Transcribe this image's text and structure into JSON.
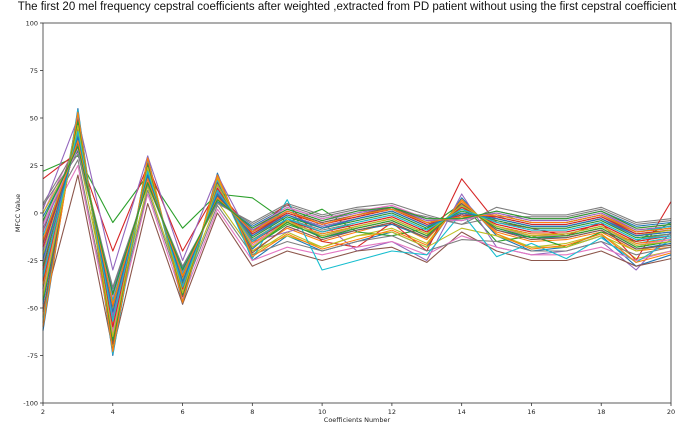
{
  "chart_data": {
    "type": "line",
    "title": "The first 20 mel frequency cepstral coefficients after weighted ,extracted from PD patient without using the first cepstral coefficient",
    "xlabel": "Coefficients Number",
    "ylabel": "MFCC Value",
    "xlim": [
      2,
      20
    ],
    "ylim": [
      -100,
      100
    ],
    "x_ticks": [
      2,
      4,
      6,
      8,
      10,
      12,
      14,
      16,
      18,
      20
    ],
    "y_ticks": [
      -100,
      -75,
      -50,
      -25,
      0,
      25,
      50,
      75,
      100
    ],
    "grid": false,
    "legend": "none",
    "x": [
      2,
      3,
      4,
      5,
      6,
      7,
      8,
      9,
      10,
      11,
      12,
      13,
      14,
      15,
      16,
      17,
      18,
      19,
      20
    ],
    "series_count_note_hidden": false,
    "series": [
      {
        "values": [
          -62,
          55,
          -75,
          30,
          -48,
          21,
          -25,
          -12,
          -20,
          -15,
          -10,
          -18,
          8,
          -12,
          -20,
          -18,
          -12,
          -28,
          -22
        ]
      },
      {
        "values": [
          -55,
          50,
          -72,
          28,
          -46,
          18,
          -20,
          -8,
          -15,
          -10,
          -5,
          -14,
          6,
          -10,
          -15,
          -14,
          -10,
          -20,
          -18
        ]
      },
      {
        "values": [
          -40,
          48,
          -68,
          26,
          -44,
          16,
          -18,
          -6,
          -12,
          -8,
          -4,
          -12,
          4,
          -8,
          -12,
          -12,
          -8,
          -18,
          -15
        ]
      },
      {
        "values": [
          -30,
          45,
          -60,
          24,
          -40,
          14,
          -15,
          -4,
          -10,
          -6,
          -2,
          -10,
          2,
          -6,
          -10,
          -10,
          -6,
          -15,
          -12
        ]
      },
      {
        "values": [
          -20,
          42,
          -55,
          22,
          -38,
          12,
          -12,
          -2,
          -8,
          -4,
          0,
          -8,
          0,
          -4,
          -8,
          -8,
          -4,
          -12,
          -10
        ]
      },
      {
        "values": [
          -10,
          40,
          -50,
          20,
          -35,
          10,
          -10,
          0,
          -6,
          -2,
          2,
          -6,
          -2,
          -2,
          -6,
          -6,
          -2,
          -10,
          -8
        ]
      },
      {
        "values": [
          0,
          38,
          -45,
          18,
          -32,
          8,
          -8,
          2,
          -4,
          0,
          4,
          -4,
          -4,
          0,
          -4,
          -4,
          0,
          -8,
          -6
        ]
      },
      {
        "values": [
          5,
          35,
          -40,
          15,
          -30,
          6,
          -6,
          4,
          -2,
          2,
          2,
          -2,
          -6,
          -2,
          -2,
          -2,
          2,
          -6,
          -4
        ]
      },
      {
        "values": [
          -45,
          52,
          -70,
          29,
          -45,
          19,
          -22,
          -10,
          -18,
          -12,
          -8,
          -16,
          7,
          -11,
          -18,
          -16,
          -11,
          -24,
          -20
        ]
      },
      {
        "values": [
          -35,
          44,
          -58,
          23,
          -39,
          13,
          -14,
          -5,
          -11,
          -7,
          -3,
          -11,
          3,
          -7,
          -11,
          -11,
          -7,
          -16,
          -13
        ]
      },
      {
        "values": [
          -25,
          41,
          -52,
          21,
          -36,
          11,
          -11,
          -1,
          -7,
          -3,
          1,
          -7,
          -1,
          -3,
          -7,
          -7,
          -3,
          -11,
          -9
        ]
      },
      {
        "values": [
          -15,
          39,
          -47,
          19,
          -33,
          9,
          -9,
          1,
          -5,
          -1,
          3,
          -5,
          -3,
          -1,
          -5,
          -5,
          -1,
          -9,
          -7
        ]
      },
      {
        "values": [
          22,
          30,
          -5,
          20,
          -8,
          10,
          8,
          -5,
          2,
          -10,
          -12,
          -8,
          5,
          -15,
          -12,
          -18,
          -10,
          -15,
          -5
        ]
      },
      {
        "values": [
          18,
          32,
          -20,
          25,
          -20,
          12,
          -10,
          5,
          -15,
          -18,
          -5,
          -20,
          18,
          -5,
          -8,
          -12,
          -5,
          -25,
          6
        ]
      },
      {
        "values": [
          2,
          50,
          -30,
          30,
          -25,
          20,
          -15,
          -10,
          -5,
          -20,
          -15,
          -25,
          10,
          -18,
          -22,
          -20,
          -15,
          -30,
          -10
        ]
      },
      {
        "values": [
          -50,
          20,
          -72,
          5,
          -48,
          0,
          -28,
          -20,
          -25,
          -20,
          -18,
          -26,
          -10,
          -20,
          -25,
          -25,
          -20,
          -28,
          -24
        ]
      },
      {
        "values": [
          -10,
          25,
          -65,
          10,
          -45,
          2,
          -25,
          -18,
          -22,
          -18,
          -15,
          -22,
          -12,
          -18,
          -22,
          -22,
          -18,
          -25,
          -20
        ]
      },
      {
        "values": [
          -5,
          28,
          -62,
          12,
          -42,
          4,
          -22,
          -15,
          -20,
          -15,
          -12,
          -20,
          -14,
          -15,
          -20,
          -20,
          -15,
          -22,
          -18
        ]
      },
      {
        "values": [
          0,
          33,
          -58,
          14,
          -40,
          6,
          -20,
          -12,
          -18,
          -12,
          -10,
          -18,
          -8,
          -12,
          -18,
          -18,
          -12,
          -20,
          -16
        ]
      },
      {
        "values": [
          -58,
          54,
          -74,
          27,
          -47,
          17,
          -24,
          7,
          -30,
          -25,
          -20,
          -22,
          0,
          -23,
          -16,
          -24,
          -13,
          -26,
          -14
        ]
      },
      {
        "values": [
          -48,
          47,
          -66,
          25,
          -43,
          15,
          -19,
          -3,
          -13,
          -9,
          -6,
          -13,
          5,
          -9,
          -13,
          -13,
          -9,
          -19,
          -16
        ]
      },
      {
        "values": [
          -38,
          43,
          -59,
          23,
          -39,
          13,
          -16,
          -5,
          -11,
          -7,
          -3,
          -11,
          3,
          -7,
          -11,
          -11,
          -7,
          -16,
          -14
        ]
      },
      {
        "values": [
          -28,
          40,
          -53,
          21,
          -37,
          11,
          -13,
          -2,
          -8,
          -4,
          0,
          -8,
          1,
          -4,
          -8,
          -8,
          -4,
          -13,
          -11
        ]
      },
      {
        "values": [
          -18,
          37,
          -49,
          19,
          -34,
          9,
          -11,
          0,
          -6,
          -2,
          2,
          -6,
          -1,
          -2,
          -6,
          -6,
          -2,
          -11,
          -9
        ]
      },
      {
        "values": [
          -8,
          35,
          -46,
          17,
          -31,
          7,
          -9,
          2,
          -4,
          0,
          3,
          -4,
          -3,
          0,
          -4,
          -4,
          0,
          -9,
          -7
        ]
      },
      {
        "values": [
          -52,
          49,
          -69,
          26,
          -44,
          16,
          -21,
          -7,
          -14,
          -9,
          -5,
          -13,
          5,
          -9,
          -14,
          -13,
          -9,
          -19,
          -17
        ]
      },
      {
        "values": [
          -42,
          46,
          -63,
          24,
          -41,
          14,
          -17,
          -4,
          -12,
          -8,
          -4,
          -12,
          4,
          -8,
          -12,
          -12,
          -8,
          -17,
          -14
        ]
      },
      {
        "values": [
          -32,
          42,
          -56,
          22,
          -38,
          12,
          -14,
          -3,
          -9,
          -5,
          -1,
          -9,
          2,
          -5,
          -9,
          -9,
          -5,
          -14,
          -11
        ]
      },
      {
        "values": [
          -22,
          39,
          -51,
          20,
          -35,
          10,
          -12,
          -1,
          -7,
          -3,
          1,
          -7,
          0,
          -3,
          -7,
          -7,
          -3,
          -12,
          -9
        ]
      },
      {
        "values": [
          -12,
          36,
          -46,
          18,
          -32,
          8,
          -10,
          1,
          -5,
          -1,
          2,
          -5,
          -2,
          -1,
          -5,
          -5,
          -1,
          -10,
          -7
        ]
      },
      {
        "values": [
          -2,
          33,
          -42,
          16,
          -29,
          6,
          -7,
          3,
          -3,
          1,
          3,
          -3,
          -4,
          1,
          -3,
          -3,
          1,
          -7,
          -5
        ]
      },
      {
        "values": [
          -60,
          53,
          -73,
          29,
          -47,
          20,
          -23,
          -11,
          -19,
          -14,
          -9,
          -17,
          7,
          -11,
          -19,
          -17,
          -11,
          -26,
          -21
        ]
      },
      {
        "values": [
          -46,
          48,
          -67,
          25,
          -43,
          15,
          -18,
          -5,
          -13,
          -8,
          -4,
          -12,
          4,
          -8,
          -13,
          -12,
          -8,
          -18,
          -15
        ]
      },
      {
        "values": [
          -36,
          44,
          -60,
          23,
          -40,
          13,
          -15,
          -4,
          -10,
          -6,
          -2,
          -10,
          3,
          -6,
          -10,
          -10,
          -6,
          -15,
          -12
        ]
      },
      {
        "values": [
          -26,
          40,
          -54,
          21,
          -36,
          11,
          -12,
          -1,
          -7,
          -3,
          1,
          -7,
          0,
          -3,
          -7,
          -7,
          -3,
          -12,
          -10
        ]
      },
      {
        "values": [
          -16,
          37,
          -48,
          19,
          -33,
          9,
          -10,
          1,
          -5,
          -1,
          3,
          -5,
          -2,
          -1,
          -5,
          -5,
          -1,
          -10,
          -8
        ]
      },
      {
        "values": [
          -6,
          34,
          -44,
          17,
          -30,
          7,
          -8,
          3,
          -3,
          1,
          4,
          -3,
          -4,
          1,
          -3,
          -3,
          1,
          -8,
          -6
        ]
      },
      {
        "values": [
          4,
          31,
          -39,
          15,
          -28,
          5,
          -5,
          5,
          -1,
          3,
          5,
          -1,
          -6,
          3,
          -1,
          -1,
          3,
          -5,
          -3
        ]
      },
      {
        "values": [
          -44,
          46,
          -65,
          24,
          -42,
          15,
          -18,
          -4,
          -12,
          -7,
          -3,
          -11,
          4,
          -7,
          -12,
          -11,
          -7,
          -17,
          -15
        ]
      },
      {
        "values": [
          -34,
          43,
          -57,
          22,
          -39,
          12,
          -15,
          -3,
          -10,
          -5,
          -1,
          -9,
          2,
          -5,
          -9,
          -9,
          -5,
          -14,
          -12
        ]
      },
      {
        "values": [
          -24,
          40,
          -52,
          20,
          -36,
          10,
          -12,
          -1,
          -8,
          -3,
          1,
          -7,
          0,
          -3,
          -7,
          -7,
          -3,
          -12,
          -10
        ]
      },
      {
        "values": [
          -14,
          38,
          -48,
          18,
          -33,
          8,
          -10,
          1,
          -6,
          -1,
          2,
          -5,
          -2,
          -1,
          -5,
          -5,
          -1,
          -10,
          -8
        ]
      },
      {
        "values": [
          -4,
          35,
          -43,
          16,
          -30,
          7,
          -8,
          2,
          -4,
          1,
          3,
          -3,
          -3,
          1,
          -3,
          -3,
          1,
          -8,
          -6
        ]
      }
    ]
  }
}
